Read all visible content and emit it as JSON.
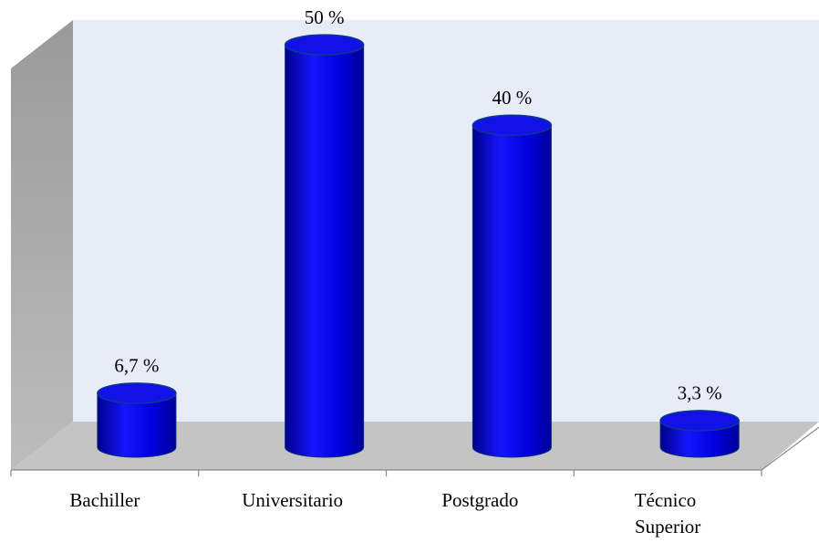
{
  "chart_data": {
    "type": "bar",
    "categories": [
      "Bachiller",
      "Universitario",
      "Postgrado",
      "Técnico Superior"
    ],
    "values": [
      6.7,
      50,
      40,
      3.3
    ],
    "value_labels": [
      "6,7 %",
      "50 %",
      "40 %",
      "3,3 %"
    ],
    "color": "#0000ee",
    "ylim": [
      0,
      55
    ]
  }
}
